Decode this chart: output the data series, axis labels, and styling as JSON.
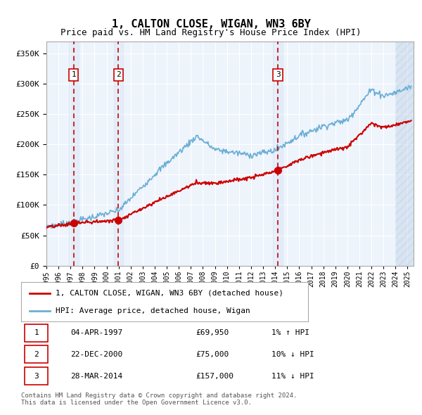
{
  "title": "1, CALTON CLOSE, WIGAN, WN3 6BY",
  "subtitle": "Price paid vs. HM Land Registry's House Price Index (HPI)",
  "xlim_start": 1995.0,
  "xlim_end": 2025.5,
  "ylim": [
    0,
    370000
  ],
  "yticks": [
    0,
    50000,
    100000,
    150000,
    200000,
    250000,
    300000,
    350000
  ],
  "ytick_labels": [
    "£0",
    "£50K",
    "£100K",
    "£150K",
    "£200K",
    "£250K",
    "£300K",
    "£350K"
  ],
  "sale_dates": [
    1997.26,
    2000.98,
    2014.23
  ],
  "sale_prices": [
    69950,
    75000,
    157000
  ],
  "sale_labels": [
    "1",
    "2",
    "3"
  ],
  "hpi_color": "#6baed6",
  "price_color": "#cc0000",
  "sale_dot_color": "#cc0000",
  "vline_color": "#cc0000",
  "shade_color": "#ddeeff",
  "legend_line1": "1, CALTON CLOSE, WIGAN, WN3 6BY (detached house)",
  "legend_line2": "HPI: Average price, detached house, Wigan",
  "table_rows": [
    [
      "1",
      "04-APR-1997",
      "£69,950",
      "1% ↑ HPI"
    ],
    [
      "2",
      "22-DEC-2000",
      "£75,000",
      "10% ↓ HPI"
    ],
    [
      "3",
      "28-MAR-2014",
      "£157,000",
      "11% ↓ HPI"
    ]
  ],
  "footer": "Contains HM Land Registry data © Crown copyright and database right 2024.\nThis data is licensed under the Open Government Licence v3.0.",
  "plot_bg": "#eef4fb",
  "hatch_start": 2024.0
}
